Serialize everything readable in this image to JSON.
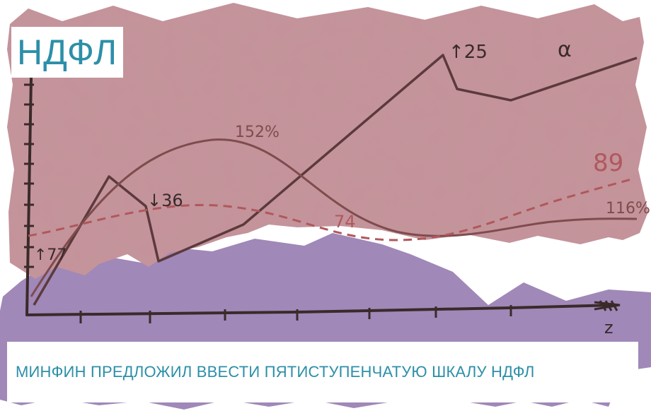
{
  "tag": {
    "text": "НДФЛ"
  },
  "caption": {
    "text": "МИНФИН ПРЕДЛОЖИЛ ВВЕСТИ ПЯТИСТУПЕНЧАТУЮ ШКАЛУ НДФЛ"
  },
  "sketch": {
    "labels": {
      "l177": "↑77",
      "l136": "↓36",
      "l152": "152%",
      "l74": "74",
      "l125": "↑25",
      "l_alpha": "α",
      "l89": "89",
      "l116": "116%",
      "x_axis_end": "z"
    }
  },
  "colors": {
    "rose": "#c4929a",
    "violet": "#a088b8",
    "dark_line": "#5c3a3c",
    "light_line": "#7e4c4e",
    "dashed": "#b0585c",
    "accent": "#2c8fa8"
  }
}
